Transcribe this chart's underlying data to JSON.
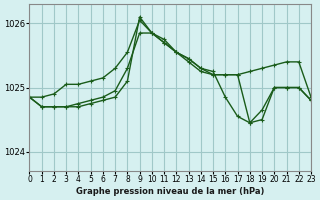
{
  "title": "Graphe pression niveau de la mer (hPa)",
  "bg_color": "#d6f0f0",
  "grid_color": "#a0c8c8",
  "line_color": "#1a5c1a",
  "xlim": [
    0,
    23
  ],
  "ylim": [
    1023.7,
    1026.3
  ],
  "yticks": [
    1024,
    1025,
    1026
  ],
  "xtick_labels": [
    "0",
    "1",
    "2",
    "3",
    "4",
    "5",
    "6",
    "7",
    "8",
    "9",
    "10",
    "11",
    "12",
    "13",
    "14",
    "15",
    "16",
    "17",
    "18",
    "19",
    "20",
    "21",
    "22",
    "23"
  ],
  "series1_x": [
    0,
    1,
    2,
    3,
    4,
    5,
    6,
    7,
    8,
    9,
    10,
    11,
    12,
    13,
    14,
    15,
    16,
    17,
    18,
    19,
    20,
    21,
    22,
    23
  ],
  "series1_y": [
    1024.85,
    1024.85,
    1024.9,
    1025.05,
    1025.05,
    1025.1,
    1025.15,
    1025.3,
    1025.55,
    1026.05,
    1025.85,
    1025.75,
    1025.55,
    1025.4,
    1025.25,
    1025.2,
    1025.2,
    1025.2,
    1025.25,
    1025.3,
    1025.35,
    1025.4,
    1025.4,
    1024.85
  ],
  "series2_x": [
    0,
    1,
    2,
    3,
    4,
    5,
    6,
    7,
    8,
    9,
    10,
    11,
    12,
    13,
    14,
    15,
    16,
    17,
    18,
    19,
    20,
    21,
    22,
    23
  ],
  "series2_y": [
    1024.85,
    1024.7,
    1024.7,
    1024.7,
    1024.75,
    1024.8,
    1024.85,
    1024.95,
    1025.3,
    1025.85,
    1025.85,
    1025.7,
    1025.55,
    1025.45,
    1025.3,
    1025.25,
    1024.85,
    1024.55,
    1024.45,
    1024.65,
    1025.0,
    1025.0,
    1025.0,
    1024.8
  ],
  "series3_x": [
    0,
    1,
    2,
    3,
    4,
    5,
    6,
    7,
    8,
    9,
    10,
    11,
    12,
    13,
    14,
    15,
    16,
    17,
    18,
    19,
    20,
    21,
    22,
    23
  ],
  "series3_y": [
    1024.85,
    1024.7,
    1024.7,
    1024.7,
    1024.7,
    1024.75,
    1024.8,
    1024.85,
    1025.1,
    1026.1,
    1025.85,
    1025.7,
    1025.55,
    1025.45,
    1025.3,
    1025.2,
    1025.2,
    1025.2,
    1024.45,
    1024.5,
    1025.0,
    1025.0,
    1025.0,
    1024.8
  ]
}
